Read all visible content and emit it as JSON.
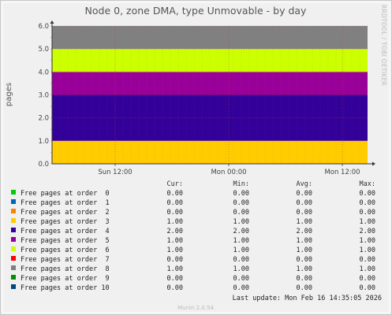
{
  "chart_data": {
    "type": "area",
    "title": "Node 0, zone DMA, type Unmovable - by day",
    "ylabel": "pages",
    "ylim": [
      0,
      6
    ],
    "y_ticks": [
      "0.0",
      "1.0",
      "2.0",
      "3.0",
      "4.0",
      "5.0",
      "6.0"
    ],
    "x_ticks": [
      "Sun 12:00",
      "Mon 00:00",
      "Mon 12:00"
    ],
    "stacked": true,
    "grid": true,
    "side_label": "RRDTOOL / TOBI OETIKER",
    "columns": [
      "Cur:",
      "Min:",
      "Avg:",
      "Max:"
    ],
    "series": [
      {
        "name": "Free pages at order  0",
        "color": "#00cc00",
        "cur": "0.00",
        "min": "0.00",
        "avg": "0.00",
        "max": "0.00",
        "value": 0
      },
      {
        "name": "Free pages at order  1",
        "color": "#0066b3",
        "cur": "0.00",
        "min": "0.00",
        "avg": "0.00",
        "max": "0.00",
        "value": 0
      },
      {
        "name": "Free pages at order  2",
        "color": "#ff8000",
        "cur": "0.00",
        "min": "0.00",
        "avg": "0.00",
        "max": "0.00",
        "value": 0
      },
      {
        "name": "Free pages at order  3",
        "color": "#ffcc00",
        "cur": "1.00",
        "min": "1.00",
        "avg": "1.00",
        "max": "1.00",
        "value": 1
      },
      {
        "name": "Free pages at order  4",
        "color": "#330099",
        "cur": "2.00",
        "min": "2.00",
        "avg": "2.00",
        "max": "2.00",
        "value": 2
      },
      {
        "name": "Free pages at order  5",
        "color": "#990099",
        "cur": "1.00",
        "min": "1.00",
        "avg": "1.00",
        "max": "1.00",
        "value": 1
      },
      {
        "name": "Free pages at order  6",
        "color": "#ccff00",
        "cur": "1.00",
        "min": "1.00",
        "avg": "1.00",
        "max": "1.00",
        "value": 1
      },
      {
        "name": "Free pages at order  7",
        "color": "#ff0000",
        "cur": "0.00",
        "min": "0.00",
        "avg": "0.00",
        "max": "0.00",
        "value": 0
      },
      {
        "name": "Free pages at order  8",
        "color": "#808080",
        "cur": "1.00",
        "min": "1.00",
        "avg": "1.00",
        "max": "1.00",
        "value": 1
      },
      {
        "name": "Free pages at order  9",
        "color": "#008f00",
        "cur": "0.00",
        "min": "0.00",
        "avg": "0.00",
        "max": "0.00",
        "value": 0
      },
      {
        "name": "Free pages at order 10",
        "color": "#00487d",
        "cur": "0.00",
        "min": "0.00",
        "avg": "0.00",
        "max": "0.00",
        "value": 0
      }
    ],
    "last_update": "Last update: Mon Feb 16 14:35:05 2026",
    "footer": "Munin 2.0.54"
  }
}
